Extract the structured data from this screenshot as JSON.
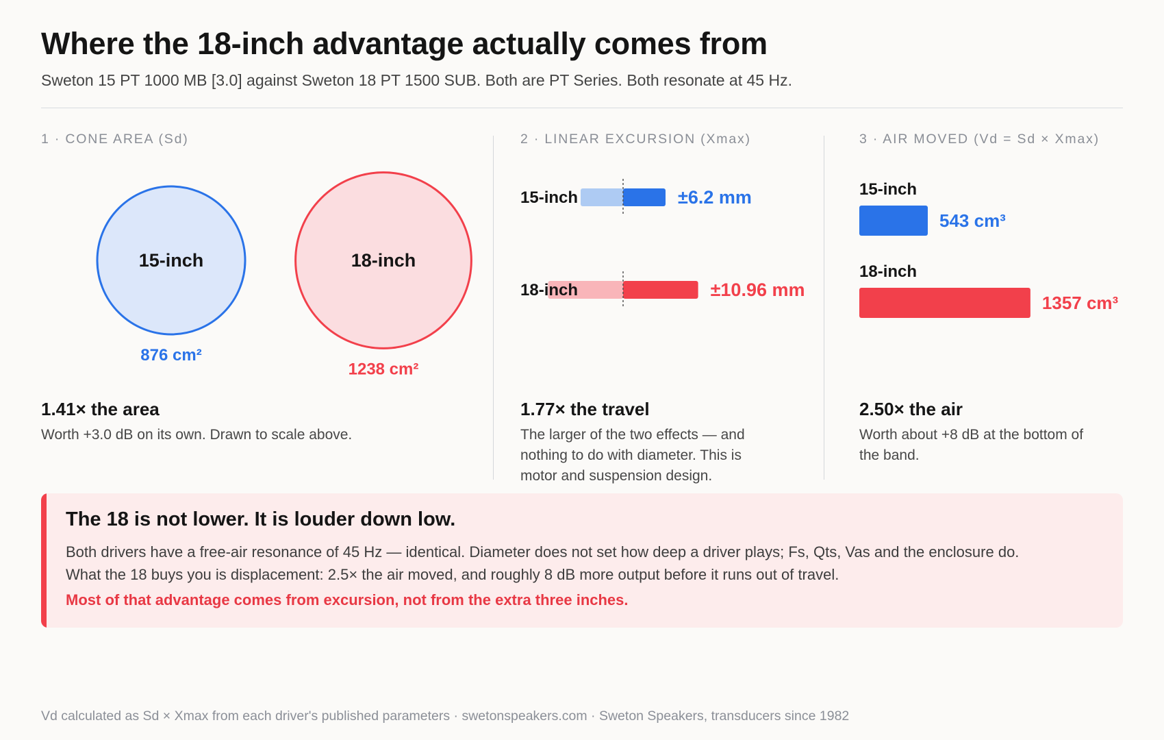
{
  "header": {
    "title": "Where the 18-inch advantage actually comes from",
    "subtitle": "Sweton 15 PT 1000 MB [3.0] against Sweton 18 PT 1500 SUB. Both are PT Series. Both resonate at 45 Hz."
  },
  "colors": {
    "blue": "#2a73e8",
    "blue_light": "#aecbf3",
    "blue_fill": "#dce7fa",
    "red": "#f2404b",
    "red_light": "#f9b5b9",
    "red_fill": "#fbdde0"
  },
  "sections": [
    {
      "label": "1 · CONE AREA (Sd)",
      "ratio": "1.41× the area",
      "desc": "Worth +3.0 dB on its own. Drawn to scale above.",
      "drivers": [
        {
          "name": "15-inch",
          "value": 876,
          "value_label": "876 cm²"
        },
        {
          "name": "18-inch",
          "value": 1238,
          "value_label": "1238 cm²"
        }
      ]
    },
    {
      "label": "2 · LINEAR EXCURSION (Xmax)",
      "ratio": "1.77× the travel",
      "desc": "The larger of the two effects — and nothing to do with diameter. This is motor and suspension design.",
      "drivers": [
        {
          "name": "15-inch",
          "value": 6.2,
          "value_label": "±6.2 mm"
        },
        {
          "name": "18-inch",
          "value": 10.96,
          "value_label": "±10.96 mm"
        }
      ]
    },
    {
      "label": "3 · AIR MOVED (Vd = Sd × Xmax)",
      "ratio": "2.50× the air",
      "desc": "Worth about +8 dB at the bottom of the band.",
      "drivers": [
        {
          "name": "15-inch",
          "value": 543,
          "value_label": "543 cm³"
        },
        {
          "name": "18-inch",
          "value": 1357,
          "value_label": "1357 cm³"
        }
      ]
    }
  ],
  "callout": {
    "title": "The 18 is not lower. It is louder down low.",
    "body": "Both drivers have a free-air resonance of 45 Hz — identical. Diameter does not set how deep a driver plays; Fs, Qts, Vas and the enclosure do. What the 18 buys you is displacement: 2.5× the air moved, and roughly 8 dB more output before it runs out of travel.",
    "emphasis": "Most of that advantage comes from excursion, not from the extra three inches."
  },
  "footer": "Vd calculated as Sd × Xmax from each driver's published parameters · swetonspeakers.com · Sweton Speakers, transducers since 1982"
}
